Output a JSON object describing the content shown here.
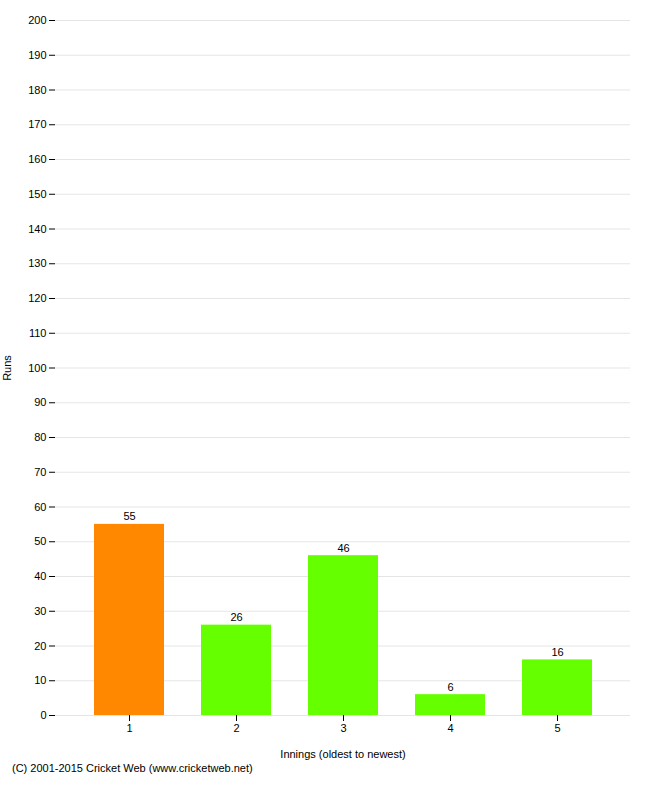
{
  "chart_data": {
    "type": "bar",
    "categories": [
      "1",
      "2",
      "3",
      "4",
      "5"
    ],
    "values": [
      55,
      26,
      46,
      6,
      16
    ],
    "colors": [
      "#ff8800",
      "#66ff00",
      "#66ff00",
      "#66ff00",
      "#66ff00"
    ],
    "xlabel": "Innings (oldest to newest)",
    "ylabel": "Runs",
    "ylim": [
      0,
      200
    ],
    "yticks": [
      0,
      10,
      20,
      30,
      40,
      50,
      60,
      70,
      80,
      90,
      100,
      110,
      120,
      130,
      140,
      150,
      160,
      170,
      180,
      190,
      200
    ],
    "grid": true,
    "data_labels": true,
    "caption": "(C) 2001-2015 Cricket Web (www.cricketweb.net)"
  }
}
